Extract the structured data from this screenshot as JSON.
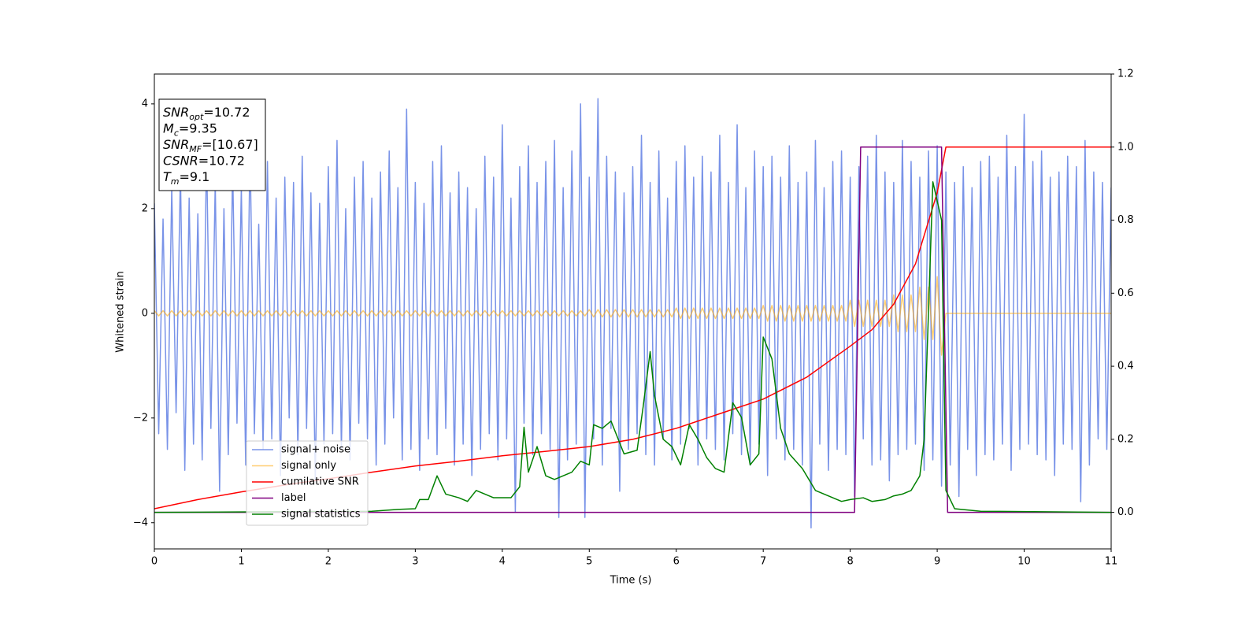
{
  "chart_data": {
    "type": "line",
    "xlabel": "Time (s)",
    "ylabel": "Whitened strain",
    "xlim": [
      0,
      11
    ],
    "xticks": [
      0,
      1,
      2,
      3,
      4,
      5,
      6,
      7,
      8,
      9,
      10,
      11
    ],
    "ylim": [
      -4.5,
      4.57
    ],
    "yticks": [
      {
        "value": -4,
        "label": "−4"
      },
      {
        "value": -2,
        "label": "−2"
      },
      0,
      2,
      4
    ],
    "y2lim": [
      -0.1,
      1.2
    ],
    "y2ticks": [
      {
        "value": 0,
        "label": "0.0"
      },
      {
        "value": 0.2,
        "label": "0.2"
      },
      {
        "value": 0.4,
        "label": "0.4"
      },
      {
        "value": 0.6,
        "label": "0.6"
      },
      {
        "value": 0.8,
        "label": "0.8"
      },
      {
        "value": 1,
        "label": "1.0"
      },
      {
        "value": 1.2,
        "label": "1.2"
      }
    ],
    "legend": "lower left",
    "annotations": [
      {
        "symbol": "SNR",
        "subscript": "opt",
        "text": "=10.72"
      },
      {
        "symbol": "M",
        "subscript": "c",
        "text": "=9.35"
      },
      {
        "symbol": "SNR",
        "subscript": "MF",
        "text": "=[10.67]"
      },
      {
        "symbol": "CSNR",
        "subscript": null,
        "text": "=10.72"
      },
      {
        "symbol": "T",
        "subscript": "m",
        "text": "=9.1"
      }
    ],
    "x": [
      0,
      0.05,
      0.1,
      0.15,
      0.2,
      0.25,
      0.3,
      0.35,
      0.4,
      0.45,
      0.5,
      0.55,
      0.6,
      0.65,
      0.7,
      0.75,
      0.8,
      0.85,
      0.9,
      0.95,
      1,
      1.05,
      1.1,
      1.15,
      1.2,
      1.25,
      1.3,
      1.35,
      1.4,
      1.45,
      1.5,
      1.55,
      1.6,
      1.65,
      1.7,
      1.75,
      1.8,
      1.85,
      1.9,
      1.95,
      2,
      2.05,
      2.1,
      2.15,
      2.2,
      2.25,
      2.3,
      2.35,
      2.4,
      2.45,
      2.5,
      2.55,
      2.6,
      2.65,
      2.7,
      2.75,
      2.8,
      2.85,
      2.9,
      2.95,
      3,
      3.05,
      3.1,
      3.15,
      3.2,
      3.25,
      3.3,
      3.35,
      3.4,
      3.45,
      3.5,
      3.55,
      3.6,
      3.65,
      3.7,
      3.75,
      3.8,
      3.85,
      3.9,
      3.95,
      4,
      4.05,
      4.1,
      4.15,
      4.2,
      4.25,
      4.3,
      4.35,
      4.4,
      4.45,
      4.5,
      4.55,
      4.6,
      4.65,
      4.7,
      4.75,
      4.8,
      4.85,
      4.9,
      4.95,
      5,
      5.05,
      5.1,
      5.15,
      5.2,
      5.25,
      5.3,
      5.35,
      5.4,
      5.45,
      5.5,
      5.55,
      5.6,
      5.65,
      5.7,
      5.75,
      5.8,
      5.85,
      5.9,
      5.95,
      6,
      6.05,
      6.1,
      6.15,
      6.2,
      6.25,
      6.3,
      6.35,
      6.4,
      6.45,
      6.5,
      6.55,
      6.6,
      6.65,
      6.7,
      6.75,
      6.8,
      6.85,
      6.9,
      6.95,
      7,
      7.05,
      7.1,
      7.15,
      7.2,
      7.25,
      7.3,
      7.35,
      7.4,
      7.45,
      7.5,
      7.55,
      7.6,
      7.65,
      7.7,
      7.75,
      7.8,
      7.85,
      7.9,
      7.95,
      8,
      8.05,
      8.1,
      8.15,
      8.2,
      8.25,
      8.3,
      8.35,
      8.4,
      8.45,
      8.5,
      8.55,
      8.6,
      8.65,
      8.7,
      8.75,
      8.8,
      8.85,
      8.9,
      8.95,
      9,
      9.05,
      9.1,
      9.15,
      9.2,
      9.25,
      9.3,
      9.35,
      9.4,
      9.45,
      9.5,
      9.55,
      9.6,
      9.65,
      9.7,
      9.75,
      9.8,
      9.85,
      9.9,
      9.95,
      10,
      10.05,
      10.1,
      10.15,
      10.2,
      10.25,
      10.3,
      10.35,
      10.4,
      10.45,
      10.5,
      10.55,
      10.6,
      10.65,
      10.7,
      10.75,
      10.8,
      10.85,
      10.9,
      10.95,
      11
    ],
    "series": [
      {
        "name": "signal+ noise",
        "color": "#6a87e6",
        "opacity": 0.9,
        "values": [
          2.1,
          -2.3,
          1.8,
          -2.6,
          2.4,
          -1.9,
          2.7,
          -3.0,
          2.2,
          -2.5,
          1.9,
          -2.8,
          3.1,
          -2.2,
          2.5,
          -3.4,
          2.0,
          -2.7,
          2.8,
          -2.1,
          2.4,
          -2.9,
          3.2,
          -2.3,
          1.7,
          -2.6,
          2.9,
          -2.4,
          2.2,
          -3.1,
          2.6,
          -2.0,
          2.5,
          -2.7,
          3.0,
          -2.2,
          2.3,
          -3.2,
          2.1,
          -2.5,
          2.8,
          -2.3,
          3.3,
          -2.6,
          2.0,
          -2.8,
          2.6,
          -2.1,
          2.9,
          -2.4,
          2.2,
          -2.9,
          2.7,
          -2.5,
          3.1,
          -2.0,
          2.4,
          -2.8,
          3.9,
          -2.6,
          2.5,
          -3.0,
          2.1,
          -2.4,
          2.9,
          -2.7,
          3.2,
          -2.2,
          2.3,
          -2.9,
          2.7,
          -2.5,
          2.4,
          -3.1,
          2.0,
          -2.6,
          3.0,
          -2.3,
          2.6,
          -2.8,
          3.6,
          -2.4,
          2.2,
          -3.8,
          2.8,
          -2.1,
          3.2,
          -2.7,
          2.5,
          -2.3,
          2.9,
          -2.6,
          3.3,
          -3.9,
          2.4,
          -2.8,
          3.1,
          -2.5,
          4.0,
          -3.9,
          2.6,
          -2.4,
          4.1,
          -2.9,
          3.0,
          -2.2,
          2.7,
          -3.4,
          2.3,
          -2.6,
          2.8,
          -2.3,
          3.4,
          -2.7,
          2.5,
          -2.9,
          3.1,
          -2.4,
          2.2,
          -2.8,
          2.9,
          -2.5,
          3.2,
          -2.2,
          2.6,
          -2.9,
          3.0,
          -2.4,
          2.7,
          -2.6,
          3.4,
          -2.8,
          2.5,
          -2.3,
          3.6,
          -2.7,
          2.4,
          -2.9,
          3.1,
          -2.5,
          2.8,
          -3.1,
          3.0,
          -2.4,
          2.6,
          -2.8,
          3.2,
          -2.6,
          2.5,
          -2.9,
          2.7,
          -4.1,
          3.3,
          -2.5,
          2.4,
          -3.0,
          2.9,
          -2.6,
          3.1,
          -2.7,
          2.6,
          -3.5,
          2.8,
          -2.4,
          3.0,
          -2.9,
          3.4,
          -2.8,
          2.7,
          -3.2,
          2.5,
          -2.7,
          3.3,
          -2.6,
          2.9,
          -2.5,
          2.6,
          -3.0,
          3.1,
          -2.8,
          3.2,
          -3.3,
          2.7,
          -2.9,
          2.5,
          -3.5,
          2.8,
          -2.6,
          2.4,
          -3.1,
          2.9,
          -2.7,
          3.0,
          -2.8,
          2.6,
          -2.5,
          3.4,
          -3.0,
          2.8,
          -2.6,
          3.8,
          -2.5,
          2.9,
          -2.7,
          3.1,
          -2.8,
          2.6,
          -3.1,
          2.7,
          -2.5,
          3.0,
          -2.6,
          2.8,
          -3.6,
          3.3,
          -2.9,
          2.7,
          -2.4,
          2.5,
          -2.6,
          2.4
        ]
      },
      {
        "name": "signal only",
        "color": "orange",
        "opacity": 0.55,
        "values": [
          0.05,
          -0.05,
          0.05,
          -0.05,
          0.05,
          -0.05,
          0.05,
          -0.05,
          0.05,
          -0.05,
          0.05,
          -0.05,
          0.05,
          -0.05,
          0.05,
          -0.05,
          0.05,
          -0.05,
          0.05,
          -0.05,
          0.05,
          -0.05,
          0.05,
          -0.05,
          0.05,
          -0.05,
          0.05,
          -0.05,
          0.05,
          -0.05,
          0.05,
          -0.05,
          0.05,
          -0.05,
          0.05,
          -0.05,
          0.05,
          -0.05,
          0.05,
          -0.05,
          0.05,
          -0.05,
          0.05,
          -0.05,
          0.05,
          -0.05,
          0.05,
          -0.05,
          0.05,
          -0.05,
          0.05,
          -0.05,
          0.05,
          -0.05,
          0.05,
          -0.05,
          0.05,
          -0.05,
          0.05,
          -0.05,
          0.05,
          -0.05,
          0.05,
          -0.05,
          0.05,
          -0.05,
          0.05,
          -0.05,
          0.05,
          -0.05,
          0.05,
          -0.05,
          0.05,
          -0.05,
          0.05,
          -0.05,
          0.05,
          -0.05,
          0.05,
          -0.05,
          0.05,
          -0.05,
          0.05,
          -0.05,
          0.05,
          -0.05,
          0.05,
          -0.05,
          0.05,
          -0.05,
          0.05,
          -0.05,
          0.05,
          -0.05,
          0.05,
          -0.05,
          0.05,
          -0.05,
          0.05,
          -0.05,
          0.07,
          -0.07,
          0.07,
          -0.07,
          0.07,
          -0.07,
          0.07,
          -0.07,
          0.07,
          -0.07,
          0.07,
          -0.07,
          0.07,
          -0.07,
          0.07,
          -0.07,
          0.07,
          -0.07,
          0.07,
          -0.07,
          0.1,
          -0.1,
          0.1,
          -0.1,
          0.1,
          -0.1,
          0.1,
          -0.1,
          0.1,
          -0.1,
          0.1,
          -0.1,
          0.1,
          -0.1,
          0.1,
          -0.1,
          0.1,
          -0.1,
          0.1,
          -0.1,
          0.15,
          -0.15,
          0.15,
          -0.15,
          0.15,
          -0.15,
          0.15,
          -0.15,
          0.15,
          -0.15,
          0.15,
          -0.15,
          0.15,
          -0.15,
          0.15,
          -0.15,
          0.15,
          -0.15,
          0.15,
          -0.15,
          0.25,
          -0.25,
          0.25,
          -0.25,
          0.25,
          -0.25,
          0.25,
          -0.25,
          0.25,
          -0.25,
          0.35,
          -0.35,
          0.35,
          -0.35,
          0.35,
          -0.35,
          0.5,
          -0.5,
          0.5,
          -0.5,
          0.7,
          -0.8,
          0,
          0,
          0,
          0,
          0,
          0,
          0,
          0,
          0,
          0,
          0,
          0,
          0,
          0,
          0,
          0,
          0,
          0,
          0,
          0,
          0,
          0,
          0,
          0,
          0,
          0,
          0,
          0,
          0,
          0,
          0,
          0,
          0,
          0,
          0,
          0,
          0,
          0,
          0
        ]
      },
      {
        "name": "cumilative SNR",
        "color": "red",
        "axis": "y2",
        "x": [
          0,
          0.5,
          1,
          1.5,
          2,
          2.5,
          3,
          3.5,
          4,
          4.5,
          5,
          5.5,
          6,
          6.5,
          7,
          7.5,
          8,
          8.25,
          8.5,
          8.75,
          9,
          9.1,
          11
        ],
        "values": [
          0.01,
          0.035,
          0.056,
          0.075,
          0.092,
          0.11,
          0.127,
          0.14,
          0.155,
          0.167,
          0.18,
          0.2,
          0.23,
          0.27,
          0.31,
          0.37,
          0.455,
          0.5,
          0.57,
          0.68,
          0.875,
          1,
          1
        ]
      },
      {
        "name": "label",
        "color": "purple",
        "axis": "y2",
        "x": [
          0,
          8.05,
          8.12,
          9.05,
          9.12,
          11
        ],
        "values": [
          0,
          0,
          1,
          1,
          0,
          0
        ]
      },
      {
        "name": "signal statistics",
        "color": "green",
        "axis": "y2",
        "x": [
          0,
          2.5,
          2.8,
          3.0,
          3.05,
          3.15,
          3.25,
          3.35,
          3.5,
          3.6,
          3.7,
          3.8,
          3.9,
          4.1,
          4.2,
          4.25,
          4.3,
          4.4,
          4.5,
          4.6,
          4.7,
          4.8,
          4.9,
          5.0,
          5.05,
          5.15,
          5.25,
          5.35,
          5.4,
          5.55,
          5.62,
          5.7,
          5.75,
          5.85,
          5.95,
          6.05,
          6.15,
          6.25,
          6.35,
          6.45,
          6.55,
          6.65,
          6.75,
          6.85,
          6.95,
          7.0,
          7.1,
          7.2,
          7.3,
          7.45,
          7.6,
          7.7,
          7.8,
          7.9,
          8.0,
          8.15,
          8.25,
          8.4,
          8.5,
          8.6,
          8.7,
          8.8,
          8.85,
          8.9,
          8.95,
          9.05,
          9.1,
          9.2,
          9.5,
          11
        ],
        "values": [
          0,
          0.003,
          0.008,
          0.01,
          0.035,
          0.035,
          0.1,
          0.05,
          0.04,
          0.03,
          0.06,
          0.05,
          0.04,
          0.04,
          0.07,
          0.233,
          0.11,
          0.18,
          0.1,
          0.09,
          0.1,
          0.11,
          0.14,
          0.13,
          0.24,
          0.23,
          0.25,
          0.19,
          0.16,
          0.17,
          0.29,
          0.44,
          0.32,
          0.2,
          0.18,
          0.13,
          0.24,
          0.2,
          0.15,
          0.12,
          0.11,
          0.3,
          0.26,
          0.13,
          0.16,
          0.48,
          0.42,
          0.23,
          0.16,
          0.12,
          0.06,
          0.05,
          0.04,
          0.03,
          0.035,
          0.04,
          0.03,
          0.035,
          0.045,
          0.05,
          0.06,
          0.1,
          0.2,
          0.55,
          0.905,
          0.8,
          0.06,
          0.01,
          0.003,
          0
        ]
      }
    ]
  }
}
